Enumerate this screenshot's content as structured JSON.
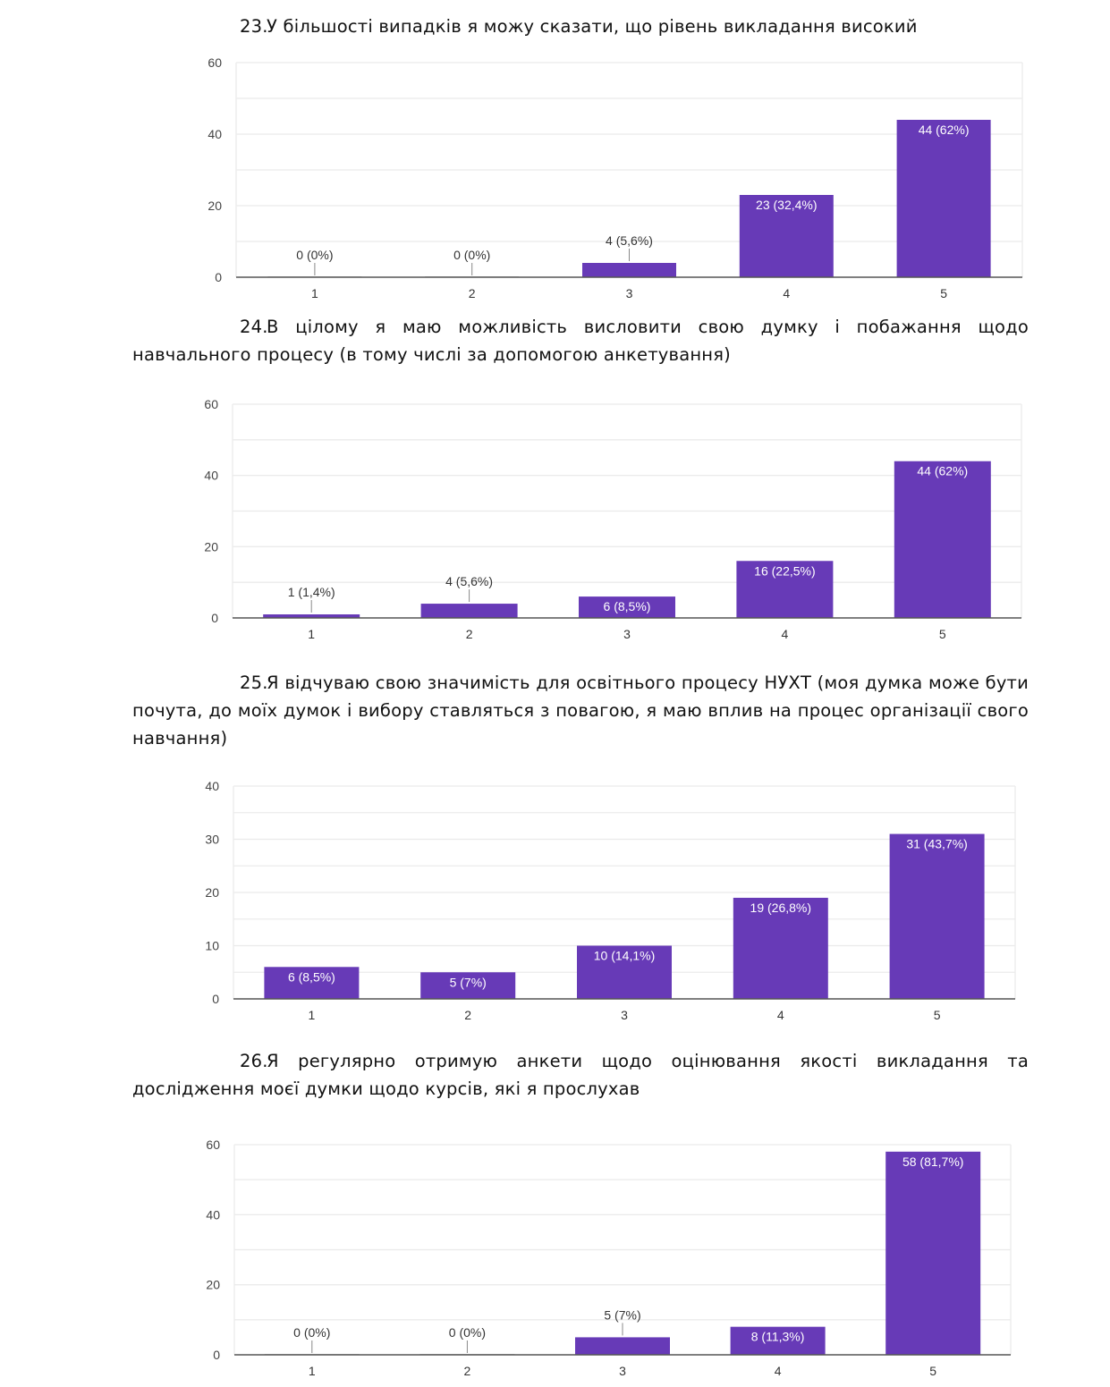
{
  "questions": [
    {
      "number": "23.",
      "text": "У більшості випадків я можу сказати, що рівень викладання високий"
    },
    {
      "number": "24.",
      "text": "В цілому я маю можливість висловити свою думку і побажання щодо навчального процесу (в тому числі за допомогою анкетування)"
    },
    {
      "number": "25.",
      "text": "Я відчуваю свою значимість для освітнього процесу НУХТ (моя думка може бути почута, до моїх думок і вибору ставляться з повагою, я маю вплив на процес організації свого навчання)"
    },
    {
      "number": "26.",
      "text": "Я регулярно отримую анкети щодо оцінювання якості викладання та дослідження моєї думки щодо курсів, які я прослухав"
    }
  ],
  "colors": {
    "bar": "#673ab7",
    "grid": "#ebebeb",
    "axis": "#555555"
  },
  "chart_data": [
    {
      "type": "bar",
      "question": "23.",
      "categories": [
        "1",
        "2",
        "3",
        "4",
        "5"
      ],
      "values": [
        0,
        0,
        4,
        23,
        44
      ],
      "labels": [
        "0 (0%)",
        "0 (0%)",
        "4 (5,6%)",
        "23 (32,4%)",
        "44 (62%)"
      ],
      "yticks": [
        "0",
        "20",
        "40",
        "60"
      ],
      "ylim": [
        0,
        60
      ],
      "grid": true
    },
    {
      "type": "bar",
      "question": "24.",
      "categories": [
        "1",
        "2",
        "3",
        "4",
        "5"
      ],
      "values": [
        1,
        4,
        6,
        16,
        44
      ],
      "labels": [
        "1 (1,4%)",
        "4 (5,6%)",
        "6 (8,5%)",
        "16 (22,5%)",
        "44 (62%)"
      ],
      "yticks": [
        "0",
        "20",
        "40",
        "60"
      ],
      "ylim": [
        0,
        60
      ],
      "grid": true
    },
    {
      "type": "bar",
      "question": "25.",
      "categories": [
        "1",
        "2",
        "3",
        "4",
        "5"
      ],
      "values": [
        6,
        5,
        10,
        19,
        31
      ],
      "labels": [
        "6 (8,5%)",
        "5 (7%)",
        "10 (14,1%)",
        "19 (26,8%)",
        "31 (43,7%)"
      ],
      "yticks": [
        "0",
        "10",
        "20",
        "30",
        "40"
      ],
      "ylim": [
        0,
        40
      ],
      "grid": true
    },
    {
      "type": "bar",
      "question": "26.",
      "categories": [
        "1",
        "2",
        "3",
        "4",
        "5"
      ],
      "values": [
        0,
        0,
        5,
        8,
        58
      ],
      "labels": [
        "0 (0%)",
        "0 (0%)",
        "5 (7%)",
        "8 (11,3%)",
        "58 (81,7%)"
      ],
      "yticks": [
        "0",
        "20",
        "40",
        "60"
      ],
      "ylim": [
        0,
        60
      ],
      "grid": true
    }
  ]
}
